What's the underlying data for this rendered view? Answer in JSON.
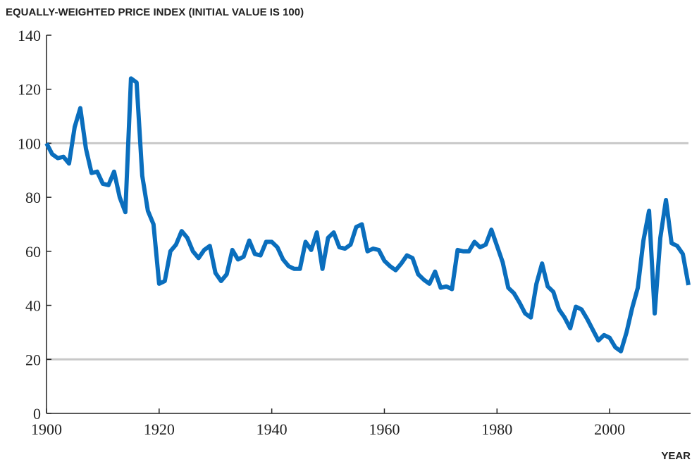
{
  "chart_data": {
    "type": "line",
    "title": "EQUALLY-WEIGHTED PRICE INDEX (INITIAL VALUE IS 100)",
    "x_label": "YEAR",
    "x": [
      1900,
      1901,
      1902,
      1903,
      1904,
      1905,
      1906,
      1907,
      1908,
      1909,
      1910,
      1911,
      1912,
      1913,
      1914,
      1915,
      1916,
      1917,
      1918,
      1919,
      1920,
      1921,
      1922,
      1923,
      1924,
      1925,
      1926,
      1927,
      1928,
      1929,
      1930,
      1931,
      1932,
      1933,
      1934,
      1935,
      1936,
      1937,
      1938,
      1939,
      1940,
      1941,
      1942,
      1943,
      1944,
      1945,
      1946,
      1947,
      1948,
      1949,
      1950,
      1951,
      1952,
      1953,
      1954,
      1955,
      1956,
      1957,
      1958,
      1959,
      1960,
      1961,
      1962,
      1963,
      1964,
      1965,
      1966,
      1967,
      1968,
      1969,
      1970,
      1971,
      1972,
      1973,
      1974,
      1975,
      1976,
      1977,
      1978,
      1979,
      1980,
      1981,
      1982,
      1983,
      1984,
      1985,
      1986,
      1987,
      1988,
      1989,
      1990,
      1991,
      1992,
      1993,
      1994,
      1995,
      1996,
      1997,
      1998,
      1999,
      2000,
      2001,
      2002,
      2003,
      2004,
      2005,
      2006,
      2007,
      2008,
      2009,
      2010,
      2011,
      2012,
      2013,
      2014
    ],
    "series": [
      {
        "color": "#0a6ebd",
        "values": [
          100,
          96,
          94.5,
          95,
          92.5,
          106,
          113,
          98,
          89,
          89.5,
          85,
          84.5,
          89.5,
          80,
          74.5,
          124,
          122.5,
          88,
          75,
          70,
          48,
          49,
          60,
          62.5,
          67.5,
          65,
          60,
          57.5,
          60.5,
          62,
          52,
          49,
          51.5,
          60.5,
          57,
          58,
          64,
          59,
          58.5,
          63.5,
          63.5,
          61.5,
          57,
          54.5,
          53.5,
          53.5,
          63.5,
          60.5,
          67,
          53.5,
          65,
          67,
          61.5,
          61,
          62.5,
          69,
          70,
          60,
          61,
          60.5,
          56.5,
          54.5,
          53,
          55.5,
          58.5,
          57.5,
          51.5,
          49.5,
          48,
          52.5,
          46.5,
          47,
          46,
          60.5,
          60,
          60,
          63.5,
          61.5,
          62.5,
          68,
          62,
          56,
          46.5,
          44.5,
          41,
          37,
          35.5,
          48,
          55.5,
          47,
          45,
          38.5,
          35.5,
          31.5,
          39.5,
          38.5,
          35,
          31,
          27,
          29,
          28,
          24.5,
          23,
          30,
          39,
          46.5,
          64,
          75,
          37,
          65,
          79,
          63,
          62,
          59,
          47.5
        ]
      }
    ],
    "xlim": [
      1900,
      2014
    ],
    "xticks": [
      1900,
      1920,
      1940,
      1960,
      1980,
      2000
    ],
    "ylim": [
      0,
      140
    ],
    "yticks": [
      0,
      20,
      40,
      60,
      80,
      100,
      120,
      140
    ],
    "gridlines": [
      20,
      100
    ]
  }
}
